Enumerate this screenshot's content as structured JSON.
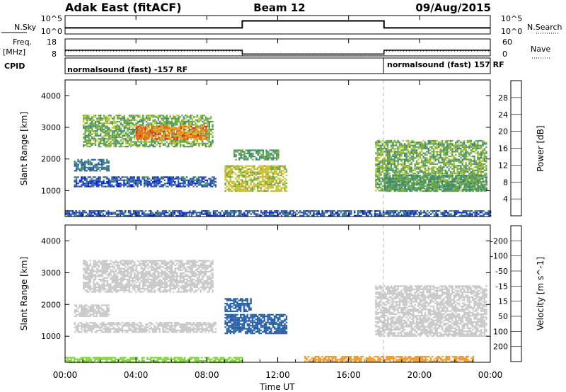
{
  "header": {
    "station": "Adak East (fitACF)",
    "beam": "Beam 12",
    "date": "09/Aug/2015"
  },
  "chart_data": [
    {
      "type": "line",
      "panel": "noise",
      "left_label": "N.Sky",
      "right_label": "N.Search",
      "left_ticks": [
        "10^5",
        "10^0"
      ],
      "right_ticks": [
        "10^5",
        "10^0"
      ],
      "series": [
        {
          "name": "N.Sky",
          "x": [
            0,
            10,
            10,
            18,
            18,
            24
          ],
          "y": [
            0.3,
            0.3,
            0.75,
            0.75,
            0.3,
            0.3
          ]
        },
        {
          "name": "N.Search",
          "x": [
            0,
            24
          ],
          "y": [
            0.02,
            0.02
          ]
        }
      ]
    },
    {
      "type": "line",
      "panel": "frequency",
      "left_label_1": "Freq.",
      "left_label_2": "[MHz]",
      "right_label": "Nave",
      "left_ticks": [
        "18",
        "8"
      ],
      "right_ticks": [
        "60",
        "0"
      ],
      "series": [
        {
          "name": "Freq.",
          "x": [
            0,
            10,
            10,
            18,
            18,
            24
          ],
          "y": [
            11.0,
            11.0,
            8.3,
            8.3,
            11.0,
            11.0
          ]
        },
        {
          "name": "Nave",
          "x": [
            0,
            10,
            10,
            18,
            18,
            24
          ],
          "y": [
            21,
            21,
            0,
            0,
            21,
            21
          ]
        }
      ]
    },
    {
      "type": "table",
      "panel": "cpid",
      "label": "CPID",
      "segments": [
        {
          "start": 0,
          "end": 18,
          "text": "normalsound (fast) -157 RF"
        },
        {
          "start": 18,
          "end": 24,
          "text": "normalsound (fast) 157 RF"
        }
      ]
    },
    {
      "type": "heatmap",
      "panel": "power",
      "xlabel": "",
      "ylabel": "Slant Range [km]",
      "xlim": [
        0,
        24
      ],
      "ylim": [
        180,
        4500
      ],
      "yticks": [
        1000,
        2000,
        3000,
        4000
      ],
      "colorbar": {
        "label": "Power [dB]",
        "ticks": [
          "4",
          "8",
          "12",
          "16",
          "20",
          "24",
          "28"
        ],
        "colors": [
          "#0a1ed8",
          "#2c57b0",
          "#3d8a73",
          "#6aa64a",
          "#b9c82c",
          "#f1ad22",
          "#ee6c14",
          "#e62418"
        ]
      },
      "regions": [
        {
          "t0": 1.0,
          "t1": 8.3,
          "r0": 2400,
          "r1": 3400,
          "value": 14
        },
        {
          "t0": 4.0,
          "t1": 8.0,
          "r0": 2650,
          "r1": 3050,
          "value": 25
        },
        {
          "t0": 0.5,
          "t1": 2.5,
          "r0": 1650,
          "r1": 2000,
          "value": 8
        },
        {
          "t0": 0.5,
          "t1": 8.5,
          "r0": 1150,
          "r1": 1450,
          "value": 6
        },
        {
          "t0": 9.0,
          "t1": 12.5,
          "r0": 1000,
          "r1": 1800,
          "value": 18
        },
        {
          "t0": 9.5,
          "t1": 12.0,
          "r0": 2000,
          "r1": 2300,
          "value": 12
        },
        {
          "t0": 17.5,
          "t1": 23.8,
          "r0": 1000,
          "r1": 2600,
          "value": 14
        },
        {
          "t0": 18.0,
          "t1": 23.8,
          "r0": 1000,
          "r1": 1500,
          "value": 12
        },
        {
          "t0": 0.0,
          "t1": 24.0,
          "r0": 200,
          "r1": 380,
          "value": 6
        }
      ]
    },
    {
      "type": "heatmap",
      "panel": "velocity",
      "xlabel": "Time UT",
      "ylabel": "Slant Range [km]",
      "xlim": [
        0,
        24
      ],
      "ylim": [
        180,
        4500
      ],
      "yticks": [
        1000,
        2000,
        3000,
        4000
      ],
      "xticks": [
        "00:00",
        "04:00",
        "08:00",
        "12:00",
        "16:00",
        "20:00",
        "00:00"
      ],
      "colorbar": {
        "label": "Velocity [m s^-1]",
        "ticks": [
          "200",
          "100",
          "50",
          "15",
          "-15",
          "-50",
          "-100",
          "-200"
        ],
        "colors": [
          "#1530c8",
          "#255ea8",
          "#37a55a",
          "#7fd33b",
          "#c8c8c8",
          "#f3cb2a",
          "#f19820",
          "#ed5c18",
          "#e32018"
        ]
      },
      "regions": [
        {
          "t0": 1.0,
          "t1": 8.3,
          "r0": 2400,
          "r1": 3400,
          "value": 0
        },
        {
          "t0": 0.5,
          "t1": 2.5,
          "r0": 1650,
          "r1": 2000,
          "value": 0
        },
        {
          "t0": 0.5,
          "t1": 8.5,
          "r0": 1150,
          "r1": 1450,
          "value": 0
        },
        {
          "t0": 9.0,
          "t1": 12.5,
          "r0": 1100,
          "r1": 1700,
          "value": 120
        },
        {
          "t0": 9.0,
          "t1": 10.5,
          "r0": 1800,
          "r1": 2200,
          "value": 180
        },
        {
          "t0": 17.5,
          "t1": 23.8,
          "r0": 1000,
          "r1": 2600,
          "value": 0
        },
        {
          "t0": 0.0,
          "t1": 10.0,
          "r0": 200,
          "r1": 350,
          "value": 30
        },
        {
          "t0": 13.5,
          "t1": 23.0,
          "r0": 200,
          "r1": 380,
          "value": -60
        }
      ]
    }
  ]
}
